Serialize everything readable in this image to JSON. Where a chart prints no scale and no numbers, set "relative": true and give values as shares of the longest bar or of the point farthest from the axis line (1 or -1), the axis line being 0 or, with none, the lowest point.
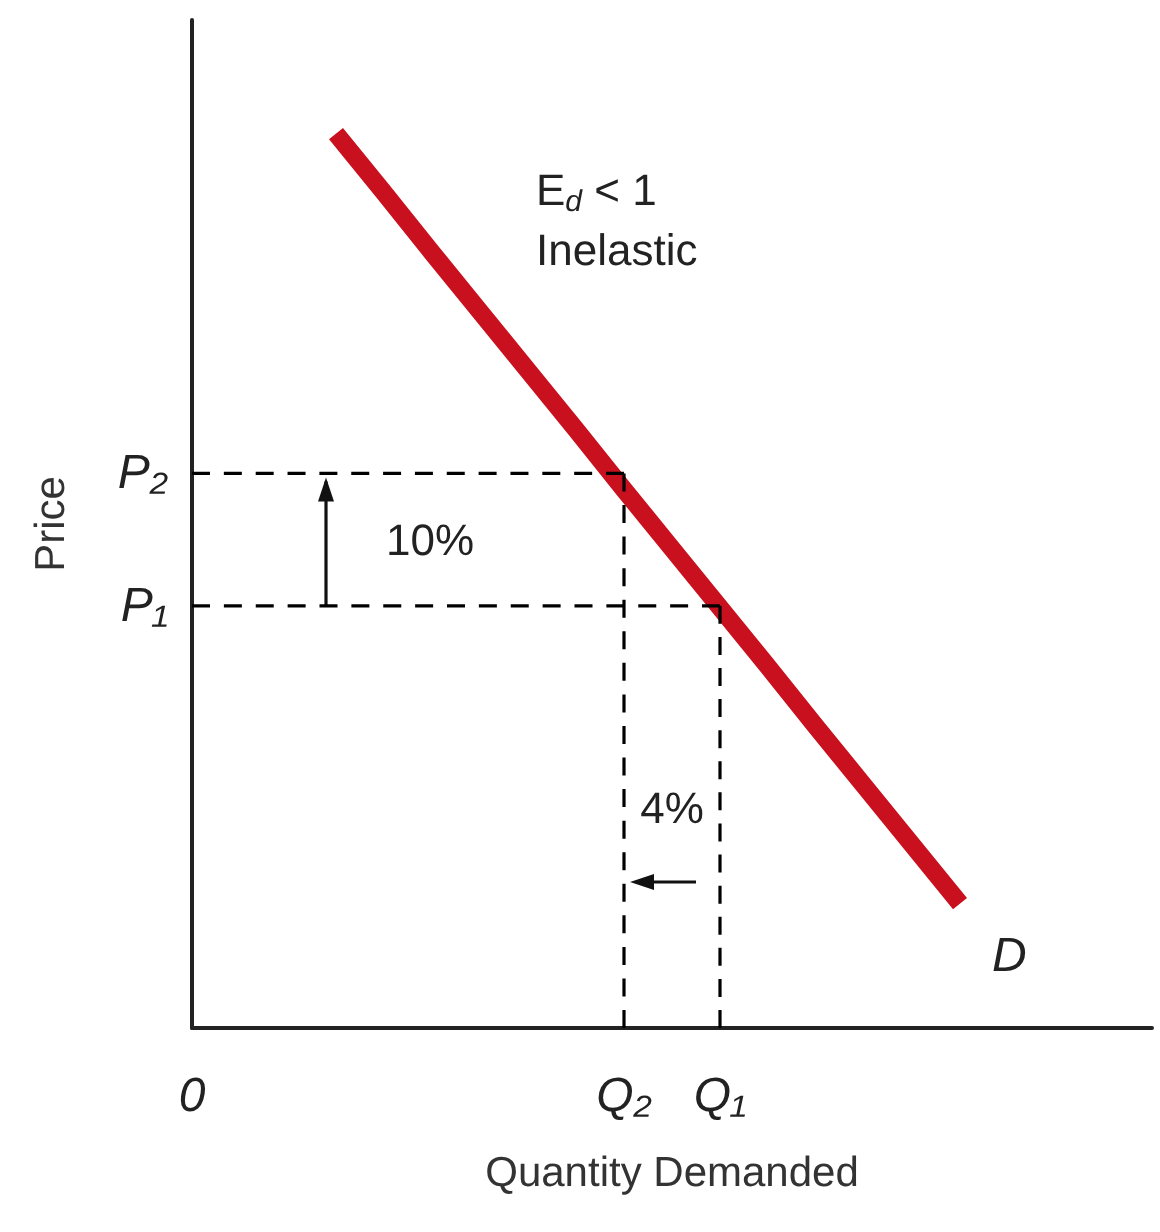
{
  "chart_data": {
    "type": "line",
    "relative": true,
    "xlabel": "Quantity Demanded",
    "ylabel": "Price",
    "marker": "none",
    "categories": [
      "0",
      null,
      null,
      null,
      null,
      null,
      null,
      null,
      null,
      "Q₂",
      null,
      "Q₁",
      null,
      null,
      null,
      null,
      null,
      null,
      null,
      null,
      null
    ],
    "series": [
      {
        "name": "D",
        "color": "#c8101e",
        "values": [
          null,
          null,
          null,
          1,
          0.934,
          0.867,
          0.801,
          0.735,
          0.669,
          0.602,
          0.536,
          0.47,
          0.404,
          0.337,
          0.271,
          0.205,
          0.139,
          null,
          null,
          null,
          null
        ]
      },
      {
        "color": "#000000",
        "line_style": "dashed",
        "values": [
          0.62,
          0.62,
          0.62,
          0.62,
          0.62,
          0.62,
          0.62,
          0.62,
          0.62,
          0.62,
          null,
          null,
          null,
          null,
          null,
          null,
          null,
          null,
          null,
          null,
          null
        ]
      },
      {
        "color": "#000000",
        "line_style": "dashed",
        "values": [
          0.472,
          0.472,
          0.472,
          0.472,
          0.472,
          0.472,
          0.472,
          0.472,
          0.472,
          0.472,
          0.472,
          0.472,
          null,
          null,
          null,
          null,
          null,
          null,
          null,
          null,
          null
        ]
      },
      {
        "color": "#000000",
        "line_style": "dashed",
        "x": [
          "Q₂",
          "Q₂"
        ],
        "values": [
          0.62,
          0
        ]
      },
      {
        "color": "#000000",
        "line_style": "dashed",
        "x": [
          "Q₁",
          "Q₁"
        ],
        "values": [
          0.472,
          0
        ]
      }
    ],
    "annotations": [
      "E$_{d}$ < 1",
      "Inelastic",
      "10%",
      "4%",
      "P₂",
      "P₁"
    ]
  }
}
